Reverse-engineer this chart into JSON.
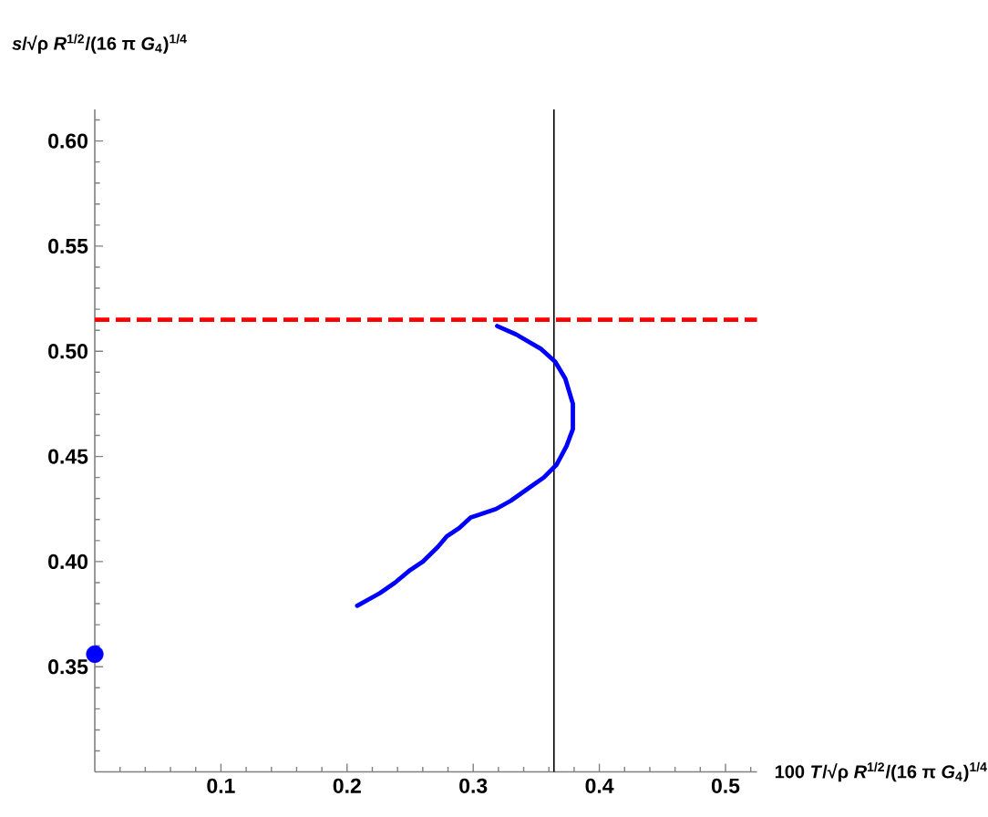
{
  "chart_data": {
    "type": "line",
    "xlabel": "100 *T*/√ρ *R*$^{1/2}$/(16 π *G*$_{4}$)$^{1/4}$",
    "ylabel": "*s*/√ρ *R*$^{1/2}$/(16 π *G*$_{4}$)$^{1/4}$",
    "xlim": [
      0,
      0.525
    ],
    "ylim": [
      0.3,
      0.615
    ],
    "xticks": [
      {
        "value": 0.02,
        "label": null
      },
      {
        "value": 0.04,
        "label": null
      },
      {
        "value": 0.06,
        "label": null
      },
      {
        "value": 0.08,
        "label": null
      },
      0.1,
      {
        "value": 0.12,
        "label": null
      },
      {
        "value": 0.14,
        "label": null
      },
      {
        "value": 0.16,
        "label": null
      },
      {
        "value": 0.18,
        "label": null
      },
      0.2,
      {
        "value": 0.22,
        "label": null
      },
      {
        "value": 0.24,
        "label": null
      },
      {
        "value": 0.26,
        "label": null
      },
      {
        "value": 0.28,
        "label": null
      },
      0.3,
      {
        "value": 0.32,
        "label": null
      },
      {
        "value": 0.34,
        "label": null
      },
      {
        "value": 0.36,
        "label": null
      },
      {
        "value": 0.38,
        "label": null
      },
      0.4,
      {
        "value": 0.42,
        "label": null
      },
      {
        "value": 0.44,
        "label": null
      },
      {
        "value": 0.46,
        "label": null
      },
      {
        "value": 0.48,
        "label": null
      },
      0.5,
      {
        "value": 0.52,
        "label": null
      }
    ],
    "yticks": [
      {
        "value": 0.31,
        "label": null
      },
      {
        "value": 0.32,
        "label": null
      },
      {
        "value": 0.33,
        "label": null
      },
      {
        "value": 0.34,
        "label": null
      },
      0.35,
      {
        "value": 0.36,
        "label": null
      },
      {
        "value": 0.37,
        "label": null
      },
      {
        "value": 0.38,
        "label": null
      },
      {
        "value": 0.39,
        "label": null
      },
      {
        "value": 0.4,
        "label": "0.40"
      },
      {
        "value": 0.41,
        "label": null
      },
      {
        "value": 0.42,
        "label": null
      },
      {
        "value": 0.43,
        "label": null
      },
      {
        "value": 0.44,
        "label": null
      },
      0.45,
      {
        "value": 0.46,
        "label": null
      },
      {
        "value": 0.47,
        "label": null
      },
      {
        "value": 0.48,
        "label": null
      },
      {
        "value": 0.49,
        "label": null
      },
      {
        "value": 0.5,
        "label": "0.50"
      },
      {
        "value": 0.51,
        "label": null
      },
      {
        "value": 0.52,
        "label": null
      },
      {
        "value": 0.53,
        "label": null
      },
      {
        "value": 0.54,
        "label": null
      },
      0.55,
      {
        "value": 0.56,
        "label": null
      },
      {
        "value": 0.57,
        "label": null
      },
      {
        "value": 0.58,
        "label": null
      },
      {
        "value": 0.59,
        "label": null
      },
      {
        "value": 0.6,
        "label": "0.60"
      },
      {
        "value": 0.61,
        "label": null
      }
    ],
    "series": [
      {
        "color": "#0000ff",
        "line_style": "solid",
        "x": [
          0.208,
          0.226,
          0.238,
          0.25,
          0.26,
          0.272,
          0.279,
          0.289,
          0.298,
          0.303,
          0.318,
          0.33,
          0.344,
          0.356,
          0.366,
          0.374,
          0.379,
          0.379,
          0.373,
          0.365,
          0.354,
          0.334,
          0.319
        ],
        "values": [
          0.379,
          0.385,
          0.39,
          0.396,
          0.4,
          0.407,
          0.412,
          0.416,
          0.421,
          0.422,
          0.425,
          0.429,
          0.435,
          0.44,
          0.446,
          0.455,
          0.463,
          0.475,
          0.487,
          0.495,
          0.501,
          0.508,
          0.512
        ]
      },
      {
        "type": "scatter",
        "color": "#0000ff",
        "marker": "circle",
        "x": [
          0
        ],
        "values": [
          0.356
        ]
      }
    ],
    "ref_lines": [
      {
        "axis": "y",
        "value": 0.515,
        "color": "#ff0000",
        "line_style": "dashed"
      },
      {
        "axis": "x",
        "value": 0.364,
        "color": "#000000",
        "line_style": "solid"
      }
    ]
  }
}
